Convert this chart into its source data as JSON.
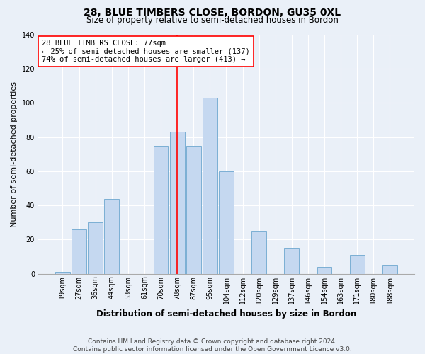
{
  "title": "28, BLUE TIMBERS CLOSE, BORDON, GU35 0XL",
  "subtitle": "Size of property relative to semi-detached houses in Bordon",
  "xlabel": "Distribution of semi-detached houses by size in Bordon",
  "ylabel": "Number of semi-detached properties",
  "categories": [
    "19sqm",
    "27sqm",
    "36sqm",
    "44sqm",
    "53sqm",
    "61sqm",
    "70sqm",
    "78sqm",
    "87sqm",
    "95sqm",
    "104sqm",
    "112sqm",
    "120sqm",
    "129sqm",
    "137sqm",
    "146sqm",
    "154sqm",
    "163sqm",
    "171sqm",
    "180sqm",
    "188sqm"
  ],
  "values": [
    1,
    26,
    30,
    44,
    0,
    0,
    75,
    83,
    75,
    103,
    60,
    0,
    25,
    0,
    15,
    0,
    4,
    0,
    11,
    0,
    5
  ],
  "bar_color": "#c5d8f0",
  "bar_edgecolor": "#7bafd4",
  "highlight_index": 7,
  "annotation_box_text": "28 BLUE TIMBERS CLOSE: 77sqm\n← 25% of semi-detached houses are smaller (137)\n74% of semi-detached houses are larger (413) →",
  "ylim": [
    0,
    140
  ],
  "yticks": [
    0,
    20,
    40,
    60,
    80,
    100,
    120,
    140
  ],
  "background_color": "#eaf0f8",
  "plot_background": "#eaf0f8",
  "footer": "Contains HM Land Registry data © Crown copyright and database right 2024.\nContains public sector information licensed under the Open Government Licence v3.0.",
  "title_fontsize": 10,
  "subtitle_fontsize": 8.5,
  "xlabel_fontsize": 8.5,
  "ylabel_fontsize": 8,
  "tick_fontsize": 7,
  "annotation_fontsize": 7.5,
  "footer_fontsize": 6.5
}
